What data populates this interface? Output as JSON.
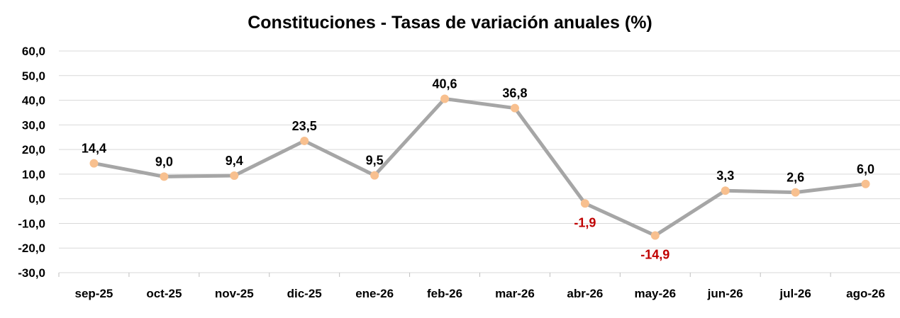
{
  "chart_data": {
    "type": "line",
    "title": "Constituciones - Tasas de variación anuales (%)",
    "xlabel": "",
    "ylabel": "",
    "categories": [
      "sep-25",
      "oct-25",
      "nov-25",
      "dic-25",
      "ene-26",
      "feb-26",
      "mar-26",
      "abr-26",
      "may-26",
      "jun-26",
      "jul-26",
      "ago-26"
    ],
    "values": [
      14.4,
      9.0,
      9.4,
      23.5,
      9.5,
      40.6,
      36.8,
      -1.9,
      -14.9,
      3.3,
      2.6,
      6.0
    ],
    "data_labels": [
      "14,4",
      "9,0",
      "9,4",
      "23,5",
      "9,5",
      "40,6",
      "36,8",
      "-1,9",
      "-14,9",
      "3,3",
      "2,6",
      "6,0"
    ],
    "ylim": [
      -30,
      60
    ],
    "y_ticks": [
      60,
      50,
      40,
      30,
      20,
      10,
      0,
      -10,
      -20,
      -30
    ],
    "y_tick_labels": [
      "60,0",
      "50,0",
      "40,0",
      "30,0",
      "20,0",
      "10,0",
      "0,0",
      "-10,0",
      "-20,0",
      "-30,0"
    ],
    "grid": true,
    "legend": false,
    "colors": {
      "line": "#a6a6a6",
      "marker": "#f8c08f",
      "label_positive": "#000000",
      "label_negative": "#c00000",
      "grid": "#d9d9d9",
      "axis": "#bfbfbf"
    }
  }
}
